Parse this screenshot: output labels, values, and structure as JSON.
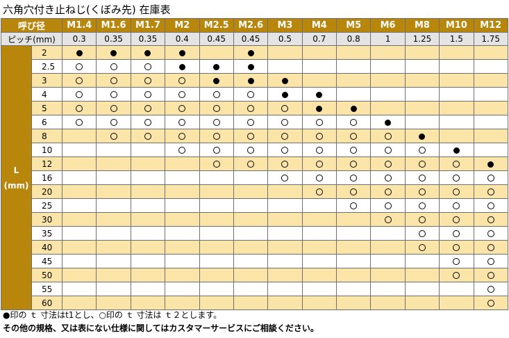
{
  "title": "六角穴付き止ねじ(くぼみ先) 在庫表",
  "header": {
    "size_label": "呼び径",
    "pitch_label": "ピッチ(mm)",
    "length_label": [
      "L",
      "(mm)"
    ]
  },
  "sizes": [
    "M1.4",
    "M1.6",
    "M1.7",
    "M2",
    "M2.5",
    "M2.6",
    "M3",
    "M4",
    "M5",
    "M6",
    "M8",
    "M10",
    "M12"
  ],
  "pitches": [
    "0.3",
    "0.35",
    "0.35",
    "0.4",
    "0.45",
    "0.45",
    "0.5",
    "0.7",
    "0.8",
    "1",
    "1.25",
    "1.5",
    "1.75"
  ],
  "legend": {
    "filled": "●",
    "open": "○"
  },
  "rows": [
    {
      "length": "2",
      "cells": [
        "F",
        "F",
        "F",
        "F",
        "",
        "F",
        "",
        "",
        "",
        "",
        "",
        "",
        ""
      ]
    },
    {
      "length": "2.5",
      "cells": [
        "O",
        "O",
        "O",
        "F",
        "F",
        "F",
        "",
        "",
        "",
        "",
        "",
        "",
        ""
      ]
    },
    {
      "length": "3",
      "cells": [
        "O",
        "O",
        "O",
        "O",
        "F",
        "F",
        "F",
        "",
        "",
        "",
        "",
        "",
        ""
      ]
    },
    {
      "length": "4",
      "cells": [
        "O",
        "O",
        "O",
        "O",
        "O",
        "O",
        "F",
        "F",
        "",
        "",
        "",
        "",
        ""
      ]
    },
    {
      "length": "5",
      "cells": [
        "O",
        "O",
        "O",
        "O",
        "O",
        "O",
        "O",
        "F",
        "F",
        "",
        "",
        "",
        ""
      ]
    },
    {
      "length": "6",
      "cells": [
        "O",
        "O",
        "O",
        "O",
        "O",
        "O",
        "O",
        "O",
        "O",
        "F",
        "",
        "",
        ""
      ]
    },
    {
      "length": "8",
      "cells": [
        "",
        "O",
        "O",
        "O",
        "O",
        "O",
        "O",
        "O",
        "O",
        "O",
        "F",
        "",
        ""
      ]
    },
    {
      "length": "10",
      "cells": [
        "",
        "",
        "",
        "O",
        "O",
        "O",
        "O",
        "O",
        "O",
        "O",
        "O",
        "F",
        ""
      ]
    },
    {
      "length": "12",
      "cells": [
        "",
        "",
        "",
        "",
        "O",
        "O",
        "O",
        "O",
        "O",
        "O",
        "O",
        "O",
        "F"
      ]
    },
    {
      "length": "16",
      "cells": [
        "",
        "",
        "",
        "",
        "",
        "",
        "O",
        "O",
        "O",
        "O",
        "O",
        "O",
        "O"
      ]
    },
    {
      "length": "20",
      "cells": [
        "",
        "",
        "",
        "",
        "",
        "",
        "",
        "O",
        "O",
        "O",
        "O",
        "O",
        "O"
      ]
    },
    {
      "length": "25",
      "cells": [
        "",
        "",
        "",
        "",
        "",
        "",
        "",
        "",
        "O",
        "O",
        "O",
        "O",
        "O"
      ]
    },
    {
      "length": "30",
      "cells": [
        "",
        "",
        "",
        "",
        "",
        "",
        "",
        "",
        "",
        "O",
        "O",
        "O",
        "O"
      ]
    },
    {
      "length": "35",
      "cells": [
        "",
        "",
        "",
        "",
        "",
        "",
        "",
        "",
        "",
        "",
        "O",
        "O",
        "O"
      ]
    },
    {
      "length": "40",
      "cells": [
        "",
        "",
        "",
        "",
        "",
        "",
        "",
        "",
        "",
        "",
        "O",
        "O",
        "O"
      ]
    },
    {
      "length": "45",
      "cells": [
        "",
        "",
        "",
        "",
        "",
        "",
        "",
        "",
        "",
        "",
        "",
        "O",
        "O"
      ]
    },
    {
      "length": "50",
      "cells": [
        "",
        "",
        "",
        "",
        "",
        "",
        "",
        "",
        "",
        "",
        "",
        "O",
        "O"
      ]
    },
    {
      "length": "55",
      "cells": [
        "",
        "",
        "",
        "",
        "",
        "",
        "",
        "",
        "",
        "",
        "",
        "",
        "O"
      ]
    },
    {
      "length": "60",
      "cells": [
        "",
        "",
        "",
        "",
        "",
        "",
        "",
        "",
        "",
        "",
        "",
        "",
        "O"
      ]
    }
  ],
  "notes": [
    "●印の ｔ 寸法はt1とし、○印の ｔ 寸法は ｔ２とします。",
    "その他の規格、又は表にない仕様に関してはカスタマーサービスにご相談ください。"
  ]
}
